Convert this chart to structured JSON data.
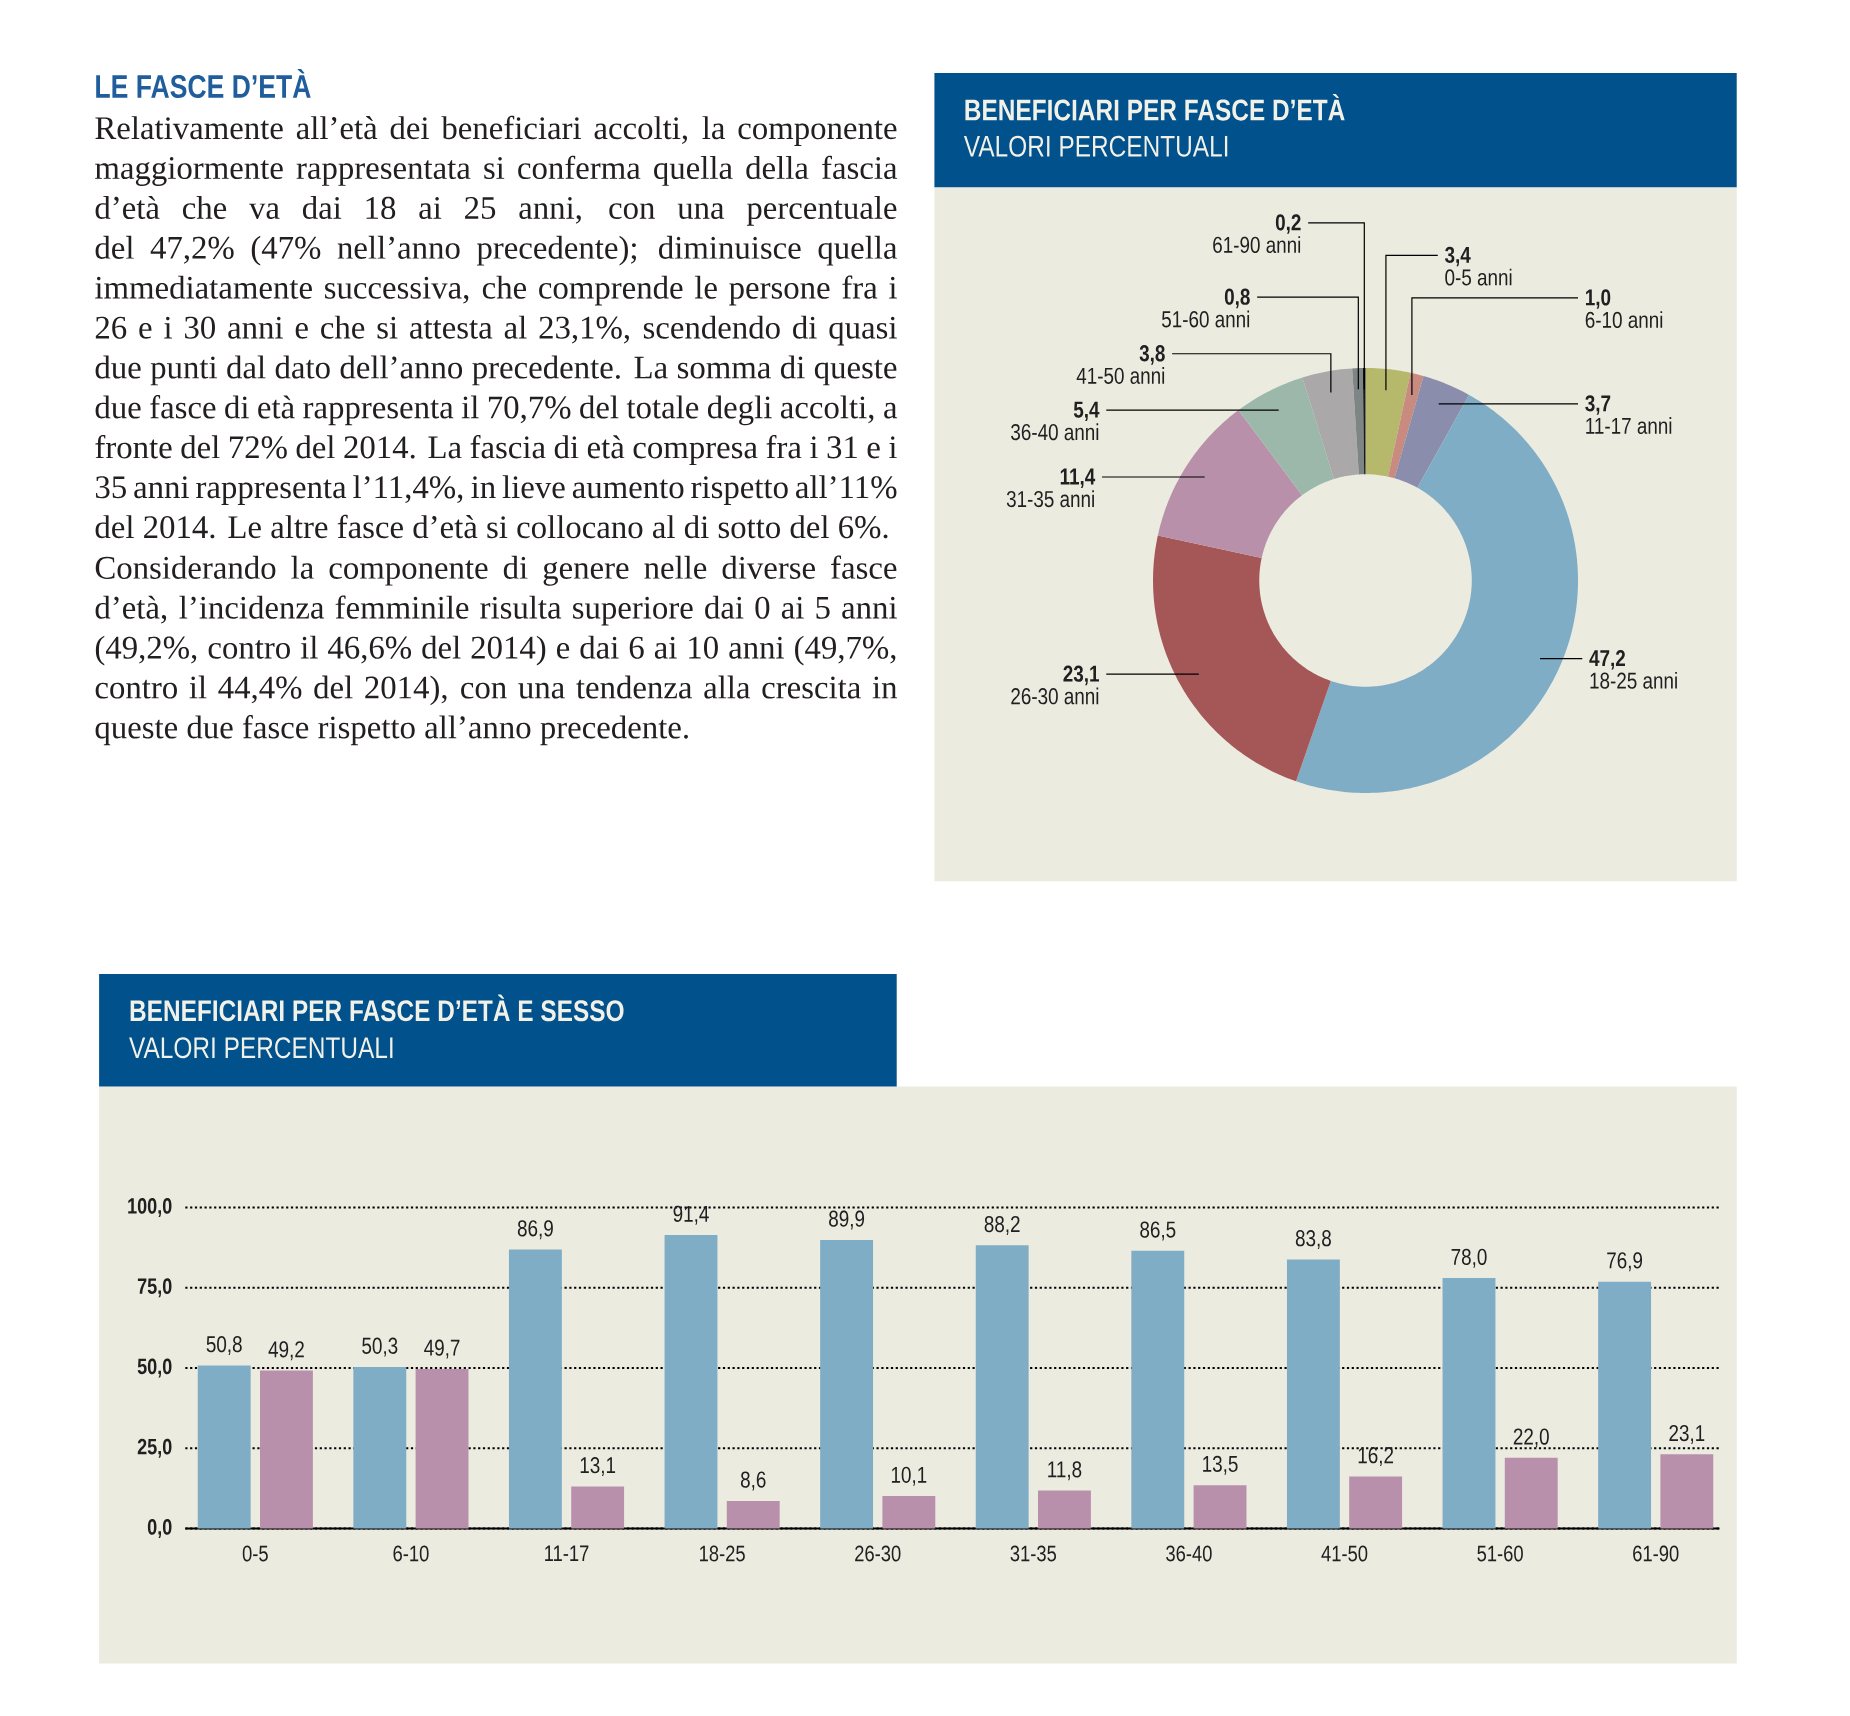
{
  "chart_data": [
    {
      "type": "other",
      "title": "LE FASCE D’ETÀ",
      "annotations": [
        "Relativamente all’età dei beneficiari accolti, la componente maggiormente rappresentata si conferma quella della fascia d’età che va dai 18 ai 25 anni, con una percentuale del 47,2% (47% nell’anno precedente); diminuisce quella immediatamente successiva, che comprende le persone fra i 26 e i 30 anni e che si attesta al 23,1%, scendendo di quasi due punti dal dato dell’anno precedente. La somma di queste due fasce di età rappresenta il 70,7% del totale degli accolti, a fronte del 72% del 2014. La fascia di età compresa fra i 31 e i 35 anni rappresenta l’11,4%, in lieve aumento rispetto all’11% del 2014. Le altre fasce d’età si collocano al di sotto del 6%.",
        "Considerando la componente di genere nelle diverse fasce d’età, l’incidenza femminile risulta superiore dai 0 ai 5 anni (49,2%, contro il 46,6% del 2014) e dai 6 ai 10 anni (49,7%, contro il 44,4% del 2014), con una tendenza alla crescita in queste due fasce rispetto all’anno precedente."
      ]
    },
    {
      "type": "donut",
      "title": "BENEFICIARI PER FASCE D’ETÀ",
      "subtitle": "VALORI PERCENTUALI",
      "categories": [
        "0-5 anni",
        "6-10 anni",
        "11-17 anni",
        "18-25 anni",
        "26-30 anni",
        "31-35 anni",
        "36-40 anni",
        "41-50 anni",
        "51-60 anni",
        "61-90 anni"
      ],
      "values": [
        3.4,
        1.0,
        3.7,
        47.2,
        23.1,
        11.4,
        5.4,
        3.8,
        0.8,
        0.2
      ],
      "value_labels": [
        "3,4",
        "1,0",
        "3,7",
        "47,2",
        "23,1",
        "11,4",
        "5,4",
        "3,8",
        "0,8",
        "0,2"
      ],
      "colors": [
        "#b6b86c",
        "#c98b80",
        "#8a8dab",
        "#80adc6",
        "#a55656",
        "#b890aa",
        "#9cb8aa",
        "#aaa8a8",
        "#7d8585",
        "#1a1a1a"
      ]
    },
    {
      "type": "bar",
      "title": "BENEFICIARI PER FASCE D’ETÀ E SESSO",
      "subtitle": "VALORI PERCENTUALI",
      "categories": [
        "0-5",
        "6-10",
        "11-17",
        "18-25",
        "26-30",
        "31-35",
        "36-40",
        "41-50",
        "51-60",
        "61-90"
      ],
      "series": [
        {
          "color": "#80adc6",
          "values": [
            50.8,
            50.3,
            86.9,
            91.4,
            89.9,
            88.2,
            86.5,
            83.8,
            78.0,
            76.9
          ],
          "value_labels": [
            "50,8",
            "50,3",
            "86,9",
            "91,4",
            "89,9",
            "88,2",
            "86,5",
            "83,8",
            "78,0",
            "76,9"
          ]
        },
        {
          "color": "#b990ac",
          "values": [
            49.2,
            49.7,
            13.1,
            8.6,
            10.1,
            11.8,
            13.5,
            16.2,
            22.0,
            23.1
          ],
          "value_labels": [
            "49,2",
            "49,7",
            "13,1",
            "8,6",
            "10,1",
            "11,8",
            "13,5",
            "16,2",
            "22,0",
            "23,1"
          ]
        }
      ],
      "ylim": [
        0,
        100
      ],
      "yticks": [
        {
          "value": 0,
          "label": "0,0"
        },
        {
          "value": 25,
          "label": "25,0"
        },
        {
          "value": 50,
          "label": "50,0"
        },
        {
          "value": 75,
          "label": "75,0"
        },
        {
          "value": 100,
          "label": "100,0"
        }
      ],
      "grid": "y"
    }
  ]
}
